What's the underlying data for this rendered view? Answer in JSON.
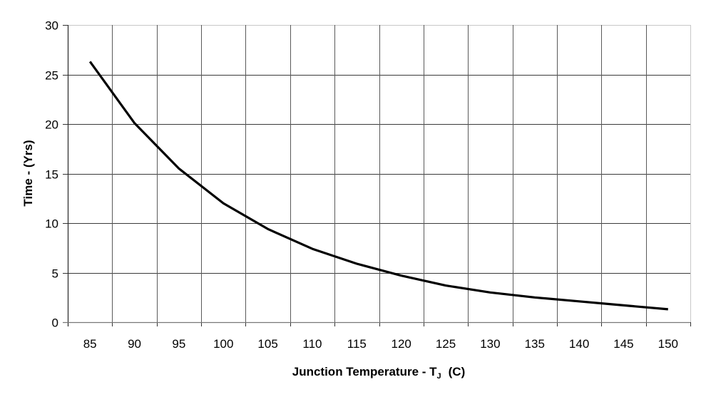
{
  "chart_data": {
    "type": "line",
    "title": "",
    "xlabel": "Junction Temperature - TJ  (C)",
    "xlabel_parts": {
      "main": "Junction Temperature - T",
      "subscript": "J",
      "suffix": "(C)"
    },
    "ylabel": "Time - (Yrs)",
    "categories": [
      "85",
      "90",
      "95",
      "100",
      "105",
      "110",
      "115",
      "120",
      "125",
      "130",
      "135",
      "140",
      "145",
      "150"
    ],
    "series": [
      {
        "name": "Time (Yrs)",
        "color": "#000000",
        "values": [
          26.3,
          20.1,
          15.5,
          12.0,
          9.4,
          7.4,
          5.9,
          4.7,
          3.7,
          3.0,
          2.5,
          2.1,
          1.7,
          1.3
        ]
      }
    ],
    "ylim": [
      0,
      30
    ],
    "yticks": [
      0,
      5,
      10,
      15,
      20,
      25,
      30
    ],
    "grid": true,
    "legend": null
  }
}
